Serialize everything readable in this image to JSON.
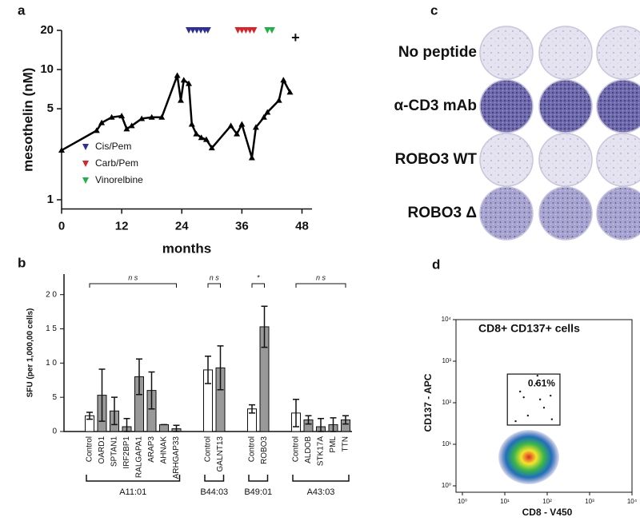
{
  "chart_data": [
    {
      "type": "line",
      "label": "a",
      "ylabel": "mesothelin (nM)",
      "xlabel": "months",
      "color": "#000000",
      "log_y": true,
      "x": [
        0,
        7,
        8,
        10,
        12,
        13,
        14,
        16,
        18,
        20,
        23.1,
        23.8,
        24.4,
        25.4,
        26,
        26.9,
        27.9,
        28.9,
        30,
        33.8,
        35,
        36,
        38,
        38.8,
        40.4,
        41.1,
        43.4,
        44.3,
        45.6
      ],
      "values": [
        2.4,
        3.4,
        3.9,
        4.3,
        4.4,
        3.5,
        3.7,
        4.2,
        4.3,
        4.3,
        9,
        5.8,
        8.3,
        7.8,
        3.8,
        3.2,
        3,
        2.9,
        2.5,
        3.7,
        3.2,
        3.8,
        2.1,
        3.6,
        4.3,
        4.7,
        5.8,
        8.3,
        6.7
      ],
      "xlim": [
        0,
        50
      ],
      "xticks": [
        0,
        12,
        24,
        36,
        48
      ],
      "ylim": [
        0.85,
        20
      ],
      "yticks": [
        1,
        5,
        10,
        20
      ],
      "treatments": [
        {
          "name": "Cis/Pem",
          "color": "#2e3192",
          "x": [
            25.4,
            26.2,
            27,
            27.8,
            28.6,
            29.2
          ]
        },
        {
          "name": "Carb/Pem",
          "color": "#d7262b",
          "x": [
            35.2,
            36,
            36.8,
            37.6,
            38.4
          ]
        },
        {
          "name": "Vinorelbine",
          "color": "#22b04a",
          "x": [
            41.1,
            42
          ]
        }
      ],
      "annotations": [
        {
          "text": "+",
          "x": 46.7
        }
      ]
    },
    {
      "type": "bar",
      "label": "b",
      "ylabel": "SFU (per 1,000,00 cells)",
      "ylim": [
        0,
        23
      ],
      "yticks": [
        0,
        5,
        {
          "value": 10,
          "label": "1 0"
        },
        {
          "value": 15,
          "label": "1 5"
        },
        {
          "value": 20,
          "label": "2 0"
        }
      ],
      "color": "#999999",
      "control_color": "#ffffff",
      "groups": [
        {
          "name": "A11:01",
          "significance": "n s",
          "categories": [
            "Control",
            "OARD1",
            "SPTAN1",
            "IRF2BP1",
            "RALGAPA1",
            "ARAP3",
            "AHNAK",
            "ARHGAP33"
          ],
          "values": [
            2.3,
            5.3,
            3,
            0.7,
            8,
            6,
            1,
            0.4
          ],
          "errors": [
            0.5,
            3.8,
            2,
            1.2,
            2.6,
            2.7,
            0,
            0.5
          ]
        },
        {
          "name": "B44:03",
          "significance": "n s",
          "categories": [
            "Control",
            "GALNT13"
          ],
          "values": [
            9,
            9.3
          ],
          "errors": [
            2,
            3.2
          ]
        },
        {
          "name": "B49:01",
          "significance": "*",
          "categories": [
            "Control",
            "ROBO3"
          ],
          "values": [
            3.3,
            15.3
          ],
          "errors": [
            0.6,
            3
          ]
        },
        {
          "name": "A43:03",
          "significance": "n s",
          "categories": [
            "Control",
            "ALDOB",
            "STK17A",
            "PML",
            "TTN"
          ],
          "values": [
            2.7,
            1.7,
            0.7,
            1,
            1.7
          ],
          "errors": [
            2,
            0.6,
            1.2,
            1,
            0.6
          ]
        }
      ]
    },
    {
      "type": "scatter",
      "label": "d",
      "title": "CD8+ CD137+ cells",
      "xlabel": "CD8 - V450",
      "ylabel": "CD137 - APC",
      "log_x": true,
      "log_y": true,
      "color": "#1a1a1a",
      "xlim": [
        1,
        10000
      ],
      "ylim": [
        1,
        10000
      ],
      "xticks": [
        {
          "value": 1,
          "label": "10⁰"
        },
        {
          "value": 10,
          "label": "10¹"
        },
        {
          "value": 100,
          "label": "10²"
        },
        {
          "value": 1000,
          "label": "10³"
        },
        {
          "value": 10000,
          "label": "10⁴"
        }
      ],
      "yticks": [
        {
          "value": 1,
          "label": "10⁰"
        },
        {
          "value": 10,
          "label": "10¹"
        },
        {
          "value": 100,
          "label": "10²"
        },
        {
          "value": 1000,
          "label": "10³"
        },
        {
          "value": 10000,
          "label": "10⁴"
        }
      ],
      "x": [
        23,
        28,
        55,
        68,
        84,
        35,
        129,
        18,
        59,
        120
      ],
      "values": [
        186,
        135,
        288,
        120,
        76,
        49,
        40,
        36,
        447,
        148
      ],
      "gate": {
        "x": [
          11.5,
          200
        ],
        "y": [
          29,
          490
        ],
        "label": "0.61%"
      }
    }
  ],
  "panel_c": {
    "label": "c",
    "rows": [
      "No peptide",
      "α-CD3 mAb",
      "ROBO3 WT",
      "ROBO3 Δ"
    ]
  }
}
